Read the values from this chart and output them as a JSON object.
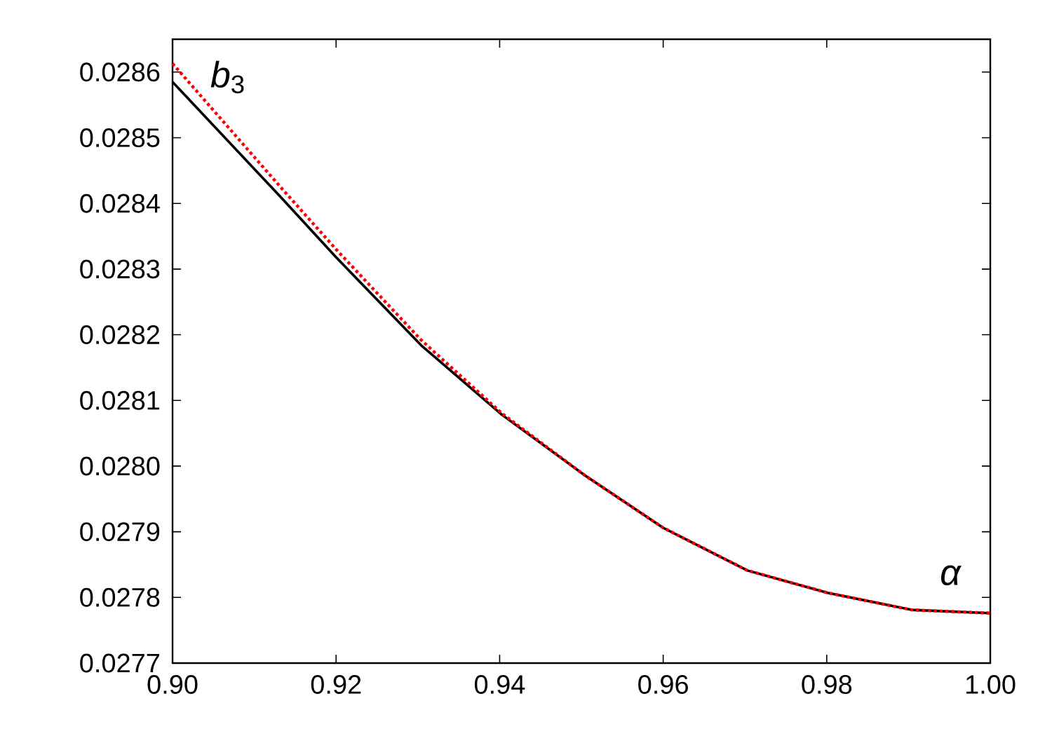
{
  "chart_data": {
    "type": "line",
    "xlabel": "α",
    "ylabel": "*b*$_{3}$",
    "x": [
      0.9,
      0.9132,
      0.92,
      0.9304,
      0.9403,
      0.9504,
      0.96,
      0.9703,
      0.9801,
      0.9904,
      1.0
    ],
    "series": [
      {
        "color": "#000000",
        "line_style": "solid",
        "values": [
          0.028585,
          0.02841,
          0.028318,
          0.028184,
          0.028078,
          0.027986,
          0.027906,
          0.027841,
          0.027807,
          0.027781,
          0.027776
        ]
      },
      {
        "color": "#ff0000",
        "line_style": "dotted",
        "values": [
          0.028613,
          0.028425,
          0.02833,
          0.028192,
          0.02808,
          0.027986,
          0.027906,
          0.027841,
          0.027807,
          0.027781,
          0.027776
        ]
      }
    ],
    "xlim": [
      0.9,
      1.0
    ],
    "ylim": [
      0.0277,
      0.02865
    ],
    "xticks": [
      {
        "value": 0.9,
        "label": "0.90"
      },
      0.92,
      0.94,
      0.96,
      0.98,
      {
        "value": 1.0,
        "label": "1.00"
      }
    ],
    "yticks": [
      0.0277,
      0.0278,
      0.0279,
      {
        "value": 0.028,
        "label": "0.0280"
      },
      0.0281,
      0.0282,
      0.0283,
      0.0284,
      0.0285,
      0.0286
    ],
    "grid": false,
    "marker": "none"
  }
}
